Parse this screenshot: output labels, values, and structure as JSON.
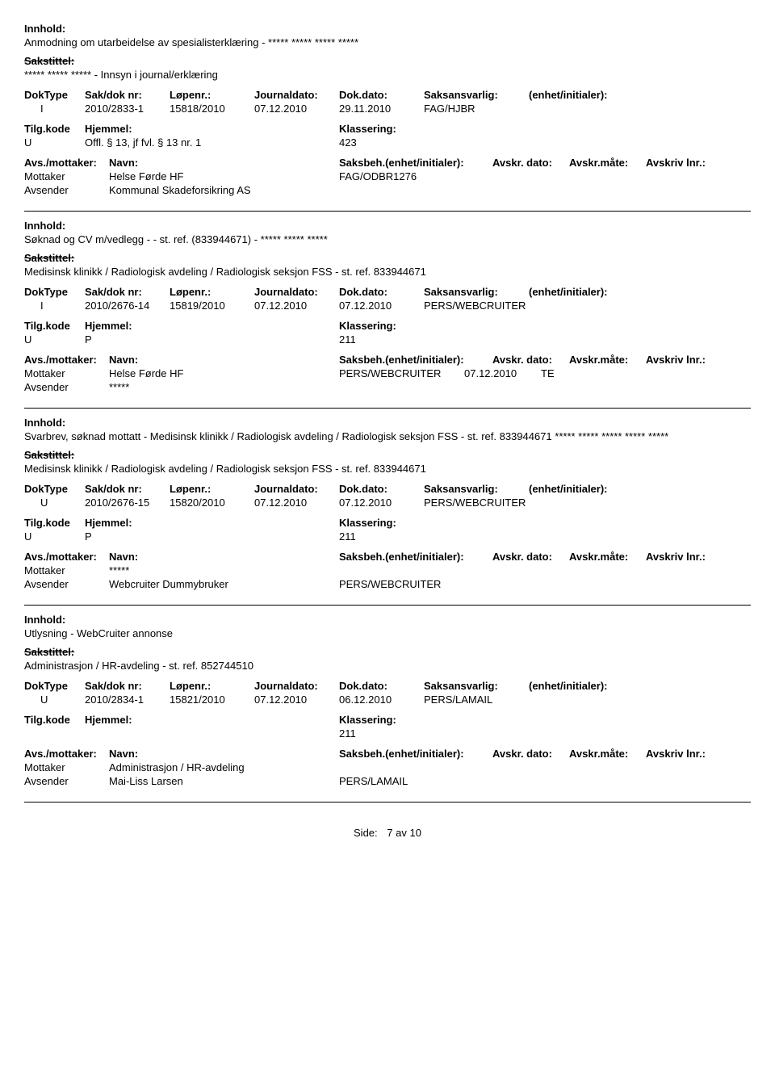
{
  "labels": {
    "innhold": "Innhold:",
    "sakstitel": "Sakstittel:",
    "dokType": "DokType",
    "sakDok": "Sak/dok nr:",
    "lopenr": "Løpenr.:",
    "journaldato": "Journaldato:",
    "dokdato": "Dok.dato:",
    "saksansvarlig": "Saksansvarlig:",
    "enhet": "(enhet/initialer):",
    "tilgkode": "Tilg.kode",
    "hjemmel": "Hjemmel:",
    "klassering": "Klassering:",
    "avsMottaker": "Avs./mottaker:",
    "navn": "Navn:",
    "saksbeh": "Saksbeh.(enhet/initialer):",
    "avskrDato": "Avskr. dato:",
    "avskrMate": "Avskr.måte:",
    "avskrivLnr": "Avskriv lnr.:",
    "mottaker": "Mottaker",
    "avsender": "Avsender",
    "side": "Side:",
    "av": "av"
  },
  "footer": {
    "page": "7",
    "total": "10"
  },
  "records": [
    {
      "innhold": "Anmodning om utarbeidelse av spesialisterklæring - ***** ***** ***** *****",
      "sakstitel": "***** ***** ***** - Innsyn i journal/erklæring",
      "dokType": "I",
      "sakDok": "2010/2833-1",
      "lopenr": "15818/2010",
      "journaldato": "07.12.2010",
      "dokdato": "29.11.2010",
      "saksansvarlig": "FAG/HJBR",
      "tilgkode": "U",
      "hjemmel": "Offl. § 13, jf fvl. § 13 nr. 1",
      "klassering": "423",
      "parties": [
        {
          "role": "Mottaker",
          "name": "Helse Førde HF",
          "saksbeh": "FAG/ODBR1276",
          "date": "",
          "mate": ""
        },
        {
          "role": "Avsender",
          "name": "Kommunal Skadeforsikring AS",
          "saksbeh": "",
          "date": "",
          "mate": ""
        }
      ]
    },
    {
      "innhold": "Søknad og CV m/vedlegg -  - st. ref. (833944671) -  ***** ***** *****",
      "sakstitel": "Medisinsk klinikk / Radiologisk avdeling / Radiologisk seksjon FSS - st. ref. 833944671",
      "dokType": "I",
      "sakDok": "2010/2676-14",
      "lopenr": "15819/2010",
      "journaldato": "07.12.2010",
      "dokdato": "07.12.2010",
      "saksansvarlig": "PERS/WEBCRUITER",
      "tilgkode": "U",
      "hjemmel": "P",
      "klassering": "211",
      "parties": [
        {
          "role": "Mottaker",
          "name": "Helse Førde HF",
          "saksbeh": "PERS/WEBCRUITER",
          "date": "07.12.2010",
          "mate": "TE"
        },
        {
          "role": "Avsender",
          "name": "*****",
          "saksbeh": "",
          "date": "",
          "mate": ""
        }
      ]
    },
    {
      "innhold": "Svarbrev, søknad mottatt -  Medisinsk klinikk / Radiologisk avdeling / Radiologisk seksjon FSS - st. ref. 833944671  ***** ***** ***** ***** *****",
      "sakstitel": "Medisinsk klinikk / Radiologisk avdeling / Radiologisk seksjon FSS - st. ref. 833944671",
      "dokType": "U",
      "sakDok": "2010/2676-15",
      "lopenr": "15820/2010",
      "journaldato": "07.12.2010",
      "dokdato": "07.12.2010",
      "saksansvarlig": "PERS/WEBCRUITER",
      "tilgkode": "U",
      "hjemmel": "P",
      "klassering": "211",
      "parties": [
        {
          "role": "Mottaker",
          "name": "*****",
          "saksbeh": "",
          "date": "",
          "mate": ""
        },
        {
          "role": "Avsender",
          "name": "Webcruiter Dummybruker",
          "saksbeh": "PERS/WEBCRUITER",
          "date": "",
          "mate": ""
        }
      ]
    },
    {
      "innhold": "Utlysning - WebCruiter annonse",
      "sakstitel": "Administrasjon / HR-avdeling - st. ref. 852744510",
      "dokType": "U",
      "sakDok": "2010/2834-1",
      "lopenr": "15821/2010",
      "journaldato": "07.12.2010",
      "dokdato": "06.12.2010",
      "saksansvarlig": "PERS/LAMAIL",
      "tilgkode": "",
      "hjemmel": "",
      "klassering": "211",
      "parties": [
        {
          "role": "Mottaker",
          "name": "Administrasjon / HR-avdeling",
          "saksbeh": "",
          "date": "",
          "mate": ""
        },
        {
          "role": "Avsender",
          "name": "Mai-Liss Larsen",
          "saksbeh": "PERS/LAMAIL",
          "date": "",
          "mate": ""
        }
      ]
    }
  ]
}
